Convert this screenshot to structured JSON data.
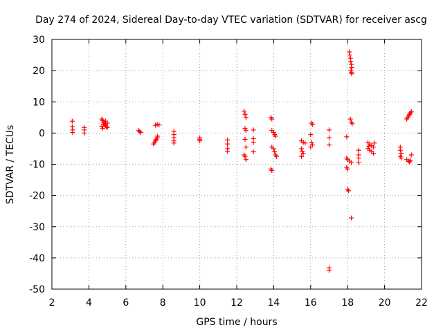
{
  "chart_data": {
    "type": "scatter",
    "title": "Day 274 of 2024, Sidereal Day-to-day VTEC variation (SDTVAR) for receiver ascg",
    "xlabel": "GPS time / hours",
    "ylabel": "SDTVAR / TECUs",
    "xlim": [
      2,
      22
    ],
    "ylim": [
      -50,
      30
    ],
    "xticks": [
      2,
      4,
      6,
      8,
      10,
      12,
      14,
      16,
      18,
      20,
      22
    ],
    "yticks": [
      -50,
      -40,
      -30,
      -20,
      -10,
      0,
      10,
      20,
      30
    ],
    "grid": true,
    "marker": "plus",
    "series": [
      {
        "name": "SDTVAR",
        "color": "#ff0000",
        "points": [
          [
            3.1,
            3.8
          ],
          [
            3.1,
            2.0
          ],
          [
            3.12,
            1.0
          ],
          [
            3.12,
            0.2
          ],
          [
            3.75,
            1.8
          ],
          [
            3.75,
            1.0
          ],
          [
            3.75,
            0.0
          ],
          [
            4.7,
            4.5
          ],
          [
            4.75,
            4.0
          ],
          [
            4.8,
            3.5
          ],
          [
            4.85,
            3.0
          ],
          [
            4.9,
            2.5
          ],
          [
            4.95,
            2.0
          ],
          [
            5.0,
            1.8
          ],
          [
            4.7,
            2.2
          ],
          [
            4.8,
            2.8
          ],
          [
            4.9,
            3.8
          ],
          [
            5.0,
            3.2
          ],
          [
            4.75,
            1.5
          ],
          [
            6.7,
            0.8
          ],
          [
            6.75,
            0.5
          ],
          [
            6.8,
            0.2
          ],
          [
            7.5,
            -3.5
          ],
          [
            7.55,
            -3.0
          ],
          [
            7.6,
            -2.5
          ],
          [
            7.65,
            -2.0
          ],
          [
            7.7,
            -1.5
          ],
          [
            7.72,
            -1.0
          ],
          [
            7.6,
            2.5
          ],
          [
            7.7,
            2.8
          ],
          [
            7.8,
            2.6
          ],
          [
            8.6,
            0.5
          ],
          [
            8.6,
            -0.5
          ],
          [
            8.6,
            -1.5
          ],
          [
            8.6,
            -2.5
          ],
          [
            8.6,
            -3.2
          ],
          [
            10.0,
            -1.5
          ],
          [
            10.0,
            -2.0
          ],
          [
            10.0,
            -2.5
          ],
          [
            11.5,
            -2.2
          ],
          [
            11.5,
            -3.5
          ],
          [
            11.5,
            -5.0
          ],
          [
            11.5,
            -5.8
          ],
          [
            12.4,
            7.0
          ],
          [
            12.45,
            6.0
          ],
          [
            12.5,
            5.0
          ],
          [
            12.45,
            1.5
          ],
          [
            12.5,
            0.8
          ],
          [
            12.45,
            -2.0
          ],
          [
            12.5,
            -4.5
          ],
          [
            12.4,
            -7.0
          ],
          [
            12.45,
            -7.5
          ],
          [
            12.5,
            -8.5
          ],
          [
            12.9,
            1.0
          ],
          [
            12.9,
            -1.8
          ],
          [
            12.9,
            -3.0
          ],
          [
            12.9,
            -6.0
          ],
          [
            13.85,
            5.0
          ],
          [
            13.9,
            4.5
          ],
          [
            13.9,
            0.8
          ],
          [
            14.0,
            0.2
          ],
          [
            14.05,
            -0.5
          ],
          [
            14.1,
            -1.0
          ],
          [
            13.9,
            -4.5
          ],
          [
            14.0,
            -5.0
          ],
          [
            14.05,
            -6.0
          ],
          [
            14.1,
            -7.0
          ],
          [
            14.15,
            -7.5
          ],
          [
            13.85,
            -11.5
          ],
          [
            13.9,
            -12.0
          ],
          [
            15.5,
            -2.5
          ],
          [
            15.6,
            -3.0
          ],
          [
            15.7,
            -3.2
          ],
          [
            15.5,
            -5.0
          ],
          [
            15.55,
            -6.0
          ],
          [
            15.6,
            -6.5
          ],
          [
            15.5,
            -7.5
          ],
          [
            16.05,
            3.2
          ],
          [
            16.1,
            2.8
          ],
          [
            16.0,
            -0.5
          ],
          [
            16.05,
            -3.0
          ],
          [
            16.1,
            -3.8
          ],
          [
            16.0,
            -4.5
          ],
          [
            17.0,
            1.0
          ],
          [
            17.0,
            -1.5
          ],
          [
            17.0,
            -3.8
          ],
          [
            17.0,
            -43.2
          ],
          [
            17.0,
            -44.0
          ],
          [
            18.1,
            26.0
          ],
          [
            18.12,
            25.0
          ],
          [
            18.15,
            24.0
          ],
          [
            18.17,
            23.0
          ],
          [
            18.2,
            22.0
          ],
          [
            18.22,
            21.0
          ],
          [
            18.18,
            20.0
          ],
          [
            18.2,
            19.5
          ],
          [
            18.22,
            19.0
          ],
          [
            18.15,
            4.5
          ],
          [
            18.2,
            3.5
          ],
          [
            18.25,
            3.0
          ],
          [
            17.95,
            -1.2
          ],
          [
            17.95,
            -8.0
          ],
          [
            18.0,
            -8.5
          ],
          [
            18.1,
            -9.0
          ],
          [
            18.2,
            -9.5
          ],
          [
            17.95,
            -11.0
          ],
          [
            18.0,
            -11.5
          ],
          [
            18.0,
            -18.0
          ],
          [
            18.05,
            -18.5
          ],
          [
            18.2,
            -27.2
          ],
          [
            18.6,
            -5.5
          ],
          [
            18.6,
            -7.0
          ],
          [
            18.6,
            -8.0
          ],
          [
            18.6,
            -9.5
          ],
          [
            19.1,
            -3.0
          ],
          [
            19.2,
            -3.5
          ],
          [
            19.3,
            -4.0
          ],
          [
            19.4,
            -4.5
          ],
          [
            19.1,
            -5.0
          ],
          [
            19.2,
            -5.5
          ],
          [
            19.3,
            -6.0
          ],
          [
            19.4,
            -6.5
          ],
          [
            19.45,
            -3.2
          ],
          [
            19.15,
            -4.2
          ],
          [
            20.85,
            -4.5
          ],
          [
            20.85,
            -5.5
          ],
          [
            20.9,
            -6.5
          ],
          [
            20.85,
            -7.5
          ],
          [
            20.9,
            -8.0
          ],
          [
            21.2,
            4.5
          ],
          [
            21.25,
            5.0
          ],
          [
            21.3,
            5.5
          ],
          [
            21.35,
            6.0
          ],
          [
            21.4,
            6.5
          ],
          [
            21.45,
            6.8
          ],
          [
            21.2,
            -8.5
          ],
          [
            21.3,
            -9.0
          ],
          [
            21.35,
            -9.2
          ],
          [
            21.4,
            -8.8
          ],
          [
            21.45,
            -7.0
          ]
        ]
      }
    ]
  }
}
